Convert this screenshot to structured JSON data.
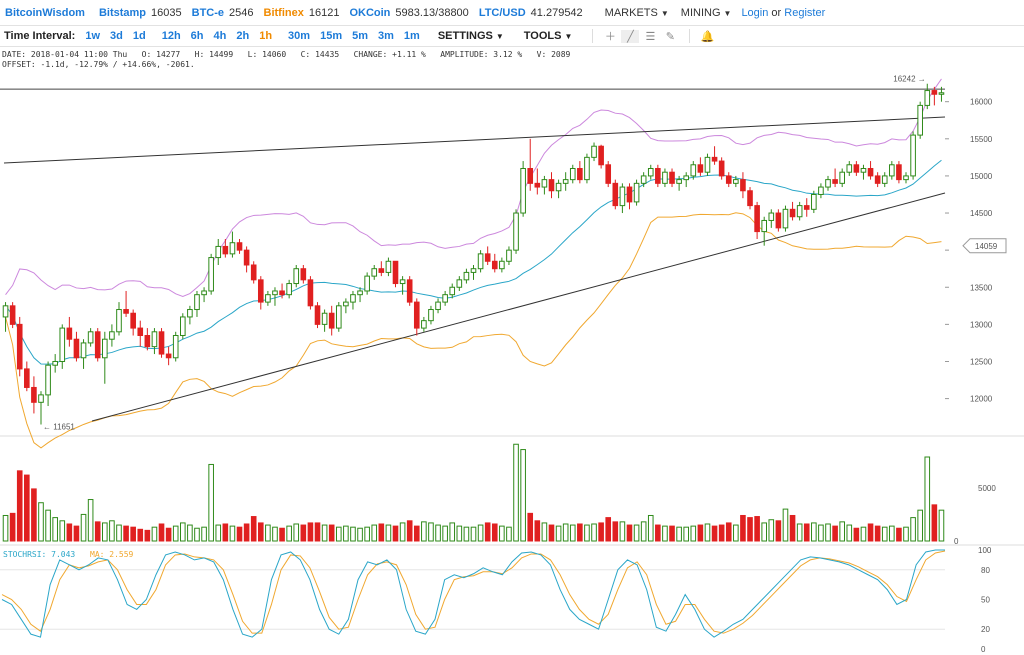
{
  "header": {
    "brand": "BitcoinWisdom",
    "tickers": [
      {
        "name": "Bitstamp",
        "value": "16035",
        "color": "#1d7bd8"
      },
      {
        "name": "BTC-e",
        "value": "2546",
        "color": "#1d7bd8"
      },
      {
        "name": "Bitfinex",
        "value": "16121",
        "color": "#f08a00"
      },
      {
        "name": "OKCoin",
        "value": "5983.13/38800",
        "color": "#1d7bd8"
      },
      {
        "name": "LTC/USD",
        "value": "41.279542",
        "color": "#1d7bd8"
      }
    ],
    "menus": [
      "MARKETS",
      "MINING"
    ],
    "login": "Login",
    "or": "or",
    "register": "Register"
  },
  "toolbar": {
    "label": "Time Interval:",
    "intervals": [
      "1w",
      "3d",
      "1d",
      "12h",
      "6h",
      "4h",
      "2h",
      "1h",
      "30m",
      "15m",
      "5m",
      "3m",
      "1m"
    ],
    "active_interval": "1h",
    "settings": "SETTINGS",
    "tools": "TOOLS",
    "icons": [
      "crosshair-icon",
      "line-icon",
      "hlines-icon",
      "pencil-icon",
      "bell-icon"
    ]
  },
  "info": {
    "line1": "DATE: 2018-01-04 11:00 Thu   O: 14277   H: 14499   L: 14060   C: 14435   CHANGE: +1.11 %   AMPLITUDE: 3.12 %   V: 2089",
    "line2": "OFFSET: -1.1d, -12.79% / +14.66%, -2061."
  },
  "chart_data": {
    "type": "candlestick",
    "y_ticks": [
      12000,
      12500,
      13000,
      13500,
      14000,
      14500,
      15000,
      15500,
      16000
    ],
    "y_range": [
      11550,
      16400
    ],
    "max_label": "16242",
    "min_label": "11651",
    "current_price": "14059",
    "volume_ticks": [
      0,
      5000
    ],
    "stochrsi_ticks": [
      0,
      20,
      50,
      80,
      100
    ],
    "stochrsi_label": "STOCHRSI: 7.043",
    "stochrsi_ma_label": "MA: 2.559",
    "colors": {
      "up": "#2f8a1a",
      "down": "#e02020",
      "bb_upper": "#cc88dd",
      "bb_mid": "#2aa6c8",
      "bb_lower": "#f0a830",
      "stoch": "#2aa6c8",
      "stoch_ma": "#f0a830"
    },
    "candles": [
      {
        "o": 13100,
        "h": 13300,
        "l": 12900,
        "c": 13250
      },
      {
        "o": 13250,
        "h": 13300,
        "l": 12950,
        "c": 13000
      },
      {
        "o": 13000,
        "h": 13100,
        "l": 12300,
        "c": 12400
      },
      {
        "o": 12400,
        "h": 12500,
        "l": 12100,
        "c": 12150
      },
      {
        "o": 12150,
        "h": 12300,
        "l": 11800,
        "c": 11950
      },
      {
        "o": 11950,
        "h": 12100,
        "l": 11651,
        "c": 12050
      },
      {
        "o": 12050,
        "h": 12500,
        "l": 11900,
        "c": 12450
      },
      {
        "o": 12450,
        "h": 12600,
        "l": 12350,
        "c": 12500
      },
      {
        "o": 12500,
        "h": 13000,
        "l": 12400,
        "c": 12950
      },
      {
        "o": 12950,
        "h": 13100,
        "l": 12700,
        "c": 12800
      },
      {
        "o": 12800,
        "h": 12900,
        "l": 12500,
        "c": 12550
      },
      {
        "o": 12550,
        "h": 12800,
        "l": 12400,
        "c": 12750
      },
      {
        "o": 12750,
        "h": 12950,
        "l": 12700,
        "c": 12900
      },
      {
        "o": 12900,
        "h": 12950,
        "l": 12500,
        "c": 12550
      },
      {
        "o": 12550,
        "h": 12900,
        "l": 12200,
        "c": 12800
      },
      {
        "o": 12800,
        "h": 13000,
        "l": 12700,
        "c": 12900
      },
      {
        "o": 12900,
        "h": 13300,
        "l": 12850,
        "c": 13200
      },
      {
        "o": 13200,
        "h": 13450,
        "l": 13100,
        "c": 13150
      },
      {
        "o": 13150,
        "h": 13200,
        "l": 12850,
        "c": 12950
      },
      {
        "o": 12950,
        "h": 13050,
        "l": 12700,
        "c": 12850
      },
      {
        "o": 12850,
        "h": 12950,
        "l": 12650,
        "c": 12700
      },
      {
        "o": 12700,
        "h": 12950,
        "l": 12600,
        "c": 12900
      },
      {
        "o": 12900,
        "h": 12950,
        "l": 12550,
        "c": 12600
      },
      {
        "o": 12600,
        "h": 12700,
        "l": 12450,
        "c": 12550
      },
      {
        "o": 12550,
        "h": 12900,
        "l": 12500,
        "c": 12850
      },
      {
        "o": 12850,
        "h": 13150,
        "l": 12800,
        "c": 13100
      },
      {
        "o": 13100,
        "h": 13250,
        "l": 13000,
        "c": 13200
      },
      {
        "o": 13200,
        "h": 13450,
        "l": 13100,
        "c": 13400
      },
      {
        "o": 13400,
        "h": 13500,
        "l": 13300,
        "c": 13450
      },
      {
        "o": 13450,
        "h": 13950,
        "l": 13400,
        "c": 13900
      },
      {
        "o": 13900,
        "h": 14150,
        "l": 13800,
        "c": 14050
      },
      {
        "o": 14050,
        "h": 14150,
        "l": 13900,
        "c": 13950
      },
      {
        "o": 13950,
        "h": 14250,
        "l": 13900,
        "c": 14100
      },
      {
        "o": 14100,
        "h": 14150,
        "l": 13950,
        "c": 14000
      },
      {
        "o": 14000,
        "h": 14050,
        "l": 13700,
        "c": 13800
      },
      {
        "o": 13800,
        "h": 13850,
        "l": 13550,
        "c": 13600
      },
      {
        "o": 13600,
        "h": 13650,
        "l": 13200,
        "c": 13300
      },
      {
        "o": 13300,
        "h": 13450,
        "l": 13250,
        "c": 13400
      },
      {
        "o": 13400,
        "h": 13500,
        "l": 13250,
        "c": 13450
      },
      {
        "o": 13450,
        "h": 13550,
        "l": 13350,
        "c": 13400
      },
      {
        "o": 13400,
        "h": 13600,
        "l": 13350,
        "c": 13550
      },
      {
        "o": 13550,
        "h": 13800,
        "l": 13500,
        "c": 13750
      },
      {
        "o": 13750,
        "h": 13800,
        "l": 13550,
        "c": 13600
      },
      {
        "o": 13600,
        "h": 13650,
        "l": 13200,
        "c": 13250
      },
      {
        "o": 13250,
        "h": 13300,
        "l": 12950,
        "c": 13000
      },
      {
        "o": 13000,
        "h": 13200,
        "l": 12900,
        "c": 13150
      },
      {
        "o": 13150,
        "h": 13250,
        "l": 12850,
        "c": 12950
      },
      {
        "o": 12950,
        "h": 13300,
        "l": 12900,
        "c": 13250
      },
      {
        "o": 13250,
        "h": 13350,
        "l": 13150,
        "c": 13300
      },
      {
        "o": 13300,
        "h": 13450,
        "l": 13200,
        "c": 13400
      },
      {
        "o": 13400,
        "h": 13500,
        "l": 13300,
        "c": 13450
      },
      {
        "o": 13450,
        "h": 13700,
        "l": 13400,
        "c": 13650
      },
      {
        "o": 13650,
        "h": 13800,
        "l": 13600,
        "c": 13750
      },
      {
        "o": 13750,
        "h": 13850,
        "l": 13650,
        "c": 13700
      },
      {
        "o": 13700,
        "h": 13900,
        "l": 13650,
        "c": 13850
      },
      {
        "o": 13850,
        "h": 13850,
        "l": 13500,
        "c": 13550
      },
      {
        "o": 13550,
        "h": 13650,
        "l": 13400,
        "c": 13600
      },
      {
        "o": 13600,
        "h": 13650,
        "l": 13250,
        "c": 13300
      },
      {
        "o": 13300,
        "h": 13350,
        "l": 12850,
        "c": 12950
      },
      {
        "o": 12950,
        "h": 13100,
        "l": 12900,
        "c": 13050
      },
      {
        "o": 13050,
        "h": 13250,
        "l": 13000,
        "c": 13200
      },
      {
        "o": 13200,
        "h": 13350,
        "l": 13150,
        "c": 13300
      },
      {
        "o": 13300,
        "h": 13450,
        "l": 13250,
        "c": 13400
      },
      {
        "o": 13400,
        "h": 13550,
        "l": 13350,
        "c": 13500
      },
      {
        "o": 13500,
        "h": 13650,
        "l": 13450,
        "c": 13600
      },
      {
        "o": 13600,
        "h": 13750,
        "l": 13550,
        "c": 13700
      },
      {
        "o": 13700,
        "h": 13800,
        "l": 13600,
        "c": 13750
      },
      {
        "o": 13750,
        "h": 14000,
        "l": 13700,
        "c": 13950
      },
      {
        "o": 13950,
        "h": 14050,
        "l": 13800,
        "c": 13850
      },
      {
        "o": 13850,
        "h": 13950,
        "l": 13700,
        "c": 13750
      },
      {
        "o": 13750,
        "h": 13900,
        "l": 13700,
        "c": 13850
      },
      {
        "o": 13850,
        "h": 14050,
        "l": 13800,
        "c": 14000
      },
      {
        "o": 14000,
        "h": 14550,
        "l": 13950,
        "c": 14500
      },
      {
        "o": 14500,
        "h": 15200,
        "l": 14450,
        "c": 15100
      },
      {
        "o": 15100,
        "h": 15500,
        "l": 14800,
        "c": 14900
      },
      {
        "o": 14900,
        "h": 15100,
        "l": 14750,
        "c": 14850
      },
      {
        "o": 14850,
        "h": 15000,
        "l": 14750,
        "c": 14950
      },
      {
        "o": 14950,
        "h": 15050,
        "l": 14700,
        "c": 14800
      },
      {
        "o": 14800,
        "h": 14950,
        "l": 14700,
        "c": 14900
      },
      {
        "o": 14900,
        "h": 15050,
        "l": 14800,
        "c": 14950
      },
      {
        "o": 14950,
        "h": 15150,
        "l": 14900,
        "c": 15100
      },
      {
        "o": 15100,
        "h": 15200,
        "l": 14900,
        "c": 14950
      },
      {
        "o": 14950,
        "h": 15300,
        "l": 14900,
        "c": 15250
      },
      {
        "o": 15250,
        "h": 15450,
        "l": 15200,
        "c": 15400
      },
      {
        "o": 15400,
        "h": 15420,
        "l": 15100,
        "c": 15150
      },
      {
        "o": 15150,
        "h": 15200,
        "l": 14850,
        "c": 14900
      },
      {
        "o": 14900,
        "h": 14950,
        "l": 14550,
        "c": 14600
      },
      {
        "o": 14600,
        "h": 14900,
        "l": 14500,
        "c": 14850
      },
      {
        "o": 14850,
        "h": 14900,
        "l": 14550,
        "c": 14650
      },
      {
        "o": 14650,
        "h": 14950,
        "l": 14600,
        "c": 14900
      },
      {
        "o": 14900,
        "h": 15050,
        "l": 14850,
        "c": 15000
      },
      {
        "o": 15000,
        "h": 15150,
        "l": 14950,
        "c": 15100
      },
      {
        "o": 15100,
        "h": 15150,
        "l": 14850,
        "c": 14900
      },
      {
        "o": 14900,
        "h": 15100,
        "l": 14850,
        "c": 15050
      },
      {
        "o": 15050,
        "h": 15100,
        "l": 14850,
        "c": 14900
      },
      {
        "o": 14900,
        "h": 15000,
        "l": 14800,
        "c": 14950
      },
      {
        "o": 14950,
        "h": 15050,
        "l": 14850,
        "c": 15000
      },
      {
        "o": 15000,
        "h": 15200,
        "l": 14950,
        "c": 15150
      },
      {
        "o": 15150,
        "h": 15250,
        "l": 15000,
        "c": 15050
      },
      {
        "o": 15050,
        "h": 15300,
        "l": 15000,
        "c": 15250
      },
      {
        "o": 15250,
        "h": 15400,
        "l": 15150,
        "c": 15200
      },
      {
        "o": 15200,
        "h": 15250,
        "l": 14950,
        "c": 15000
      },
      {
        "o": 15000,
        "h": 15050,
        "l": 14850,
        "c": 14900
      },
      {
        "o": 14900,
        "h": 15000,
        "l": 14850,
        "c": 14950
      },
      {
        "o": 14950,
        "h": 15050,
        "l": 14700,
        "c": 14800
      },
      {
        "o": 14800,
        "h": 14850,
        "l": 14550,
        "c": 14600
      },
      {
        "o": 14600,
        "h": 14650,
        "l": 14150,
        "c": 14250
      },
      {
        "o": 14250,
        "h": 14450,
        "l": 14060,
        "c": 14400
      },
      {
        "o": 14400,
        "h": 14550,
        "l": 14300,
        "c": 14500
      },
      {
        "o": 14500,
        "h": 14550,
        "l": 14250,
        "c": 14300
      },
      {
        "o": 14300,
        "h": 14600,
        "l": 14250,
        "c": 14550
      },
      {
        "o": 14550,
        "h": 14650,
        "l": 14400,
        "c": 14450
      },
      {
        "o": 14450,
        "h": 14650,
        "l": 14400,
        "c": 14600
      },
      {
        "o": 14600,
        "h": 14700,
        "l": 14450,
        "c": 14550
      },
      {
        "o": 14550,
        "h": 14800,
        "l": 14500,
        "c": 14750
      },
      {
        "o": 14750,
        "h": 14900,
        "l": 14700,
        "c": 14850
      },
      {
        "o": 14850,
        "h": 15000,
        "l": 14800,
        "c": 14950
      },
      {
        "o": 14950,
        "h": 15100,
        "l": 14850,
        "c": 14900
      },
      {
        "o": 14900,
        "h": 15100,
        "l": 14850,
        "c": 15050
      },
      {
        "o": 15050,
        "h": 15200,
        "l": 15000,
        "c": 15150
      },
      {
        "o": 15150,
        "h": 15200,
        "l": 15000,
        "c": 15050
      },
      {
        "o": 15050,
        "h": 15150,
        "l": 14950,
        "c": 15100
      },
      {
        "o": 15100,
        "h": 15200,
        "l": 14950,
        "c": 15000
      },
      {
        "o": 15000,
        "h": 15050,
        "l": 14850,
        "c": 14900
      },
      {
        "o": 14900,
        "h": 15050,
        "l": 14850,
        "c": 15000
      },
      {
        "o": 15000,
        "h": 15200,
        "l": 14950,
        "c": 15150
      },
      {
        "o": 15150,
        "h": 15200,
        "l": 14900,
        "c": 14950
      },
      {
        "o": 14950,
        "h": 15050,
        "l": 14900,
        "c": 15000
      },
      {
        "o": 15000,
        "h": 15600,
        "l": 14950,
        "c": 15550
      },
      {
        "o": 15550,
        "h": 16000,
        "l": 15500,
        "c": 15950
      },
      {
        "o": 15950,
        "h": 16242,
        "l": 15900,
        "c": 16150
      },
      {
        "o": 16150,
        "h": 16200,
        "l": 15950,
        "c": 16100
      },
      {
        "o": 16100,
        "h": 16200,
        "l": 16000,
        "c": 16120
      }
    ],
    "volumes": [
      2400,
      2600,
      6600,
      6200,
      4900,
      3600,
      2900,
      2200,
      1900,
      1600,
      1400,
      2500,
      3900,
      1800,
      1700,
      1900,
      1500,
      1400,
      1300,
      1100,
      1000,
      1300,
      1600,
      1200,
      1400,
      1700,
      1500,
      1200,
      1300,
      7200,
      1500,
      1600,
      1400,
      1300,
      1600,
      2300,
      1700,
      1500,
      1300,
      1200,
      1400,
      1600,
      1500,
      1700,
      1700,
      1500,
      1500,
      1300,
      1400,
      1300,
      1200,
      1300,
      1500,
      1600,
      1500,
      1400,
      1700,
      1900,
      1400,
      1800,
      1700,
      1500,
      1400,
      1700,
      1400,
      1300,
      1300,
      1500,
      1700,
      1600,
      1400,
      1300,
      9100,
      8600,
      2600,
      1900,
      1700,
      1500,
      1400,
      1600,
      1500,
      1600,
      1500,
      1600,
      1700,
      2200,
      1800,
      1800,
      1500,
      1500,
      1800,
      2400,
      1500,
      1400,
      1400,
      1300,
      1300,
      1400,
      1500,
      1600,
      1400,
      1500,
      1700,
      1500,
      2400,
      2200,
      2300,
      1700,
      2000,
      1900,
      3000,
      2400,
      1600,
      1600,
      1700,
      1500,
      1600,
      1400,
      1800,
      1500,
      1200,
      1300,
      1600,
      1400,
      1300,
      1400,
      1200,
      1300,
      2200,
      2900,
      7900,
      3400,
      2900
    ],
    "stochrsi": [
      50,
      45,
      30,
      15,
      12,
      65,
      90,
      85,
      80,
      85,
      92,
      90,
      70,
      45,
      40,
      50,
      75,
      95,
      98,
      95,
      90,
      92,
      88,
      70,
      40,
      15,
      12,
      20,
      70,
      95,
      98,
      90,
      70,
      40,
      20,
      15,
      30,
      70,
      88,
      85,
      90,
      80,
      40,
      18,
      15,
      30,
      70,
      75,
      72,
      76,
      82,
      78,
      75,
      88,
      97,
      98,
      95,
      85,
      60,
      40,
      30,
      25,
      20,
      50,
      80,
      90,
      85,
      60,
      22,
      18,
      35,
      55,
      40,
      20,
      12,
      18,
      25,
      30,
      40,
      50,
      60,
      70,
      80,
      90,
      93,
      92,
      90,
      88,
      85,
      80,
      75,
      70,
      60,
      45,
      50,
      85,
      98,
      100,
      100
    ],
    "stochrsi_ma": [
      55,
      50,
      40,
      25,
      18,
      40,
      70,
      85,
      82,
      84,
      88,
      90,
      80,
      60,
      45,
      45,
      60,
      85,
      95,
      96,
      93,
      92,
      90,
      80,
      55,
      28,
      16,
      16,
      45,
      80,
      95,
      94,
      82,
      58,
      32,
      20,
      22,
      50,
      75,
      86,
      88,
      85,
      65,
      35,
      20,
      22,
      50,
      70,
      73,
      74,
      78,
      78,
      76,
      82,
      92,
      96,
      96,
      90,
      75,
      55,
      40,
      30,
      25,
      35,
      60,
      82,
      88,
      75,
      45,
      25,
      28,
      45,
      45,
      30,
      18,
      16,
      20,
      26,
      34,
      44,
      54,
      64,
      74,
      84,
      90,
      92,
      91,
      89,
      87,
      83,
      78,
      73,
      65,
      53,
      48,
      70,
      90,
      97,
      99
    ]
  }
}
